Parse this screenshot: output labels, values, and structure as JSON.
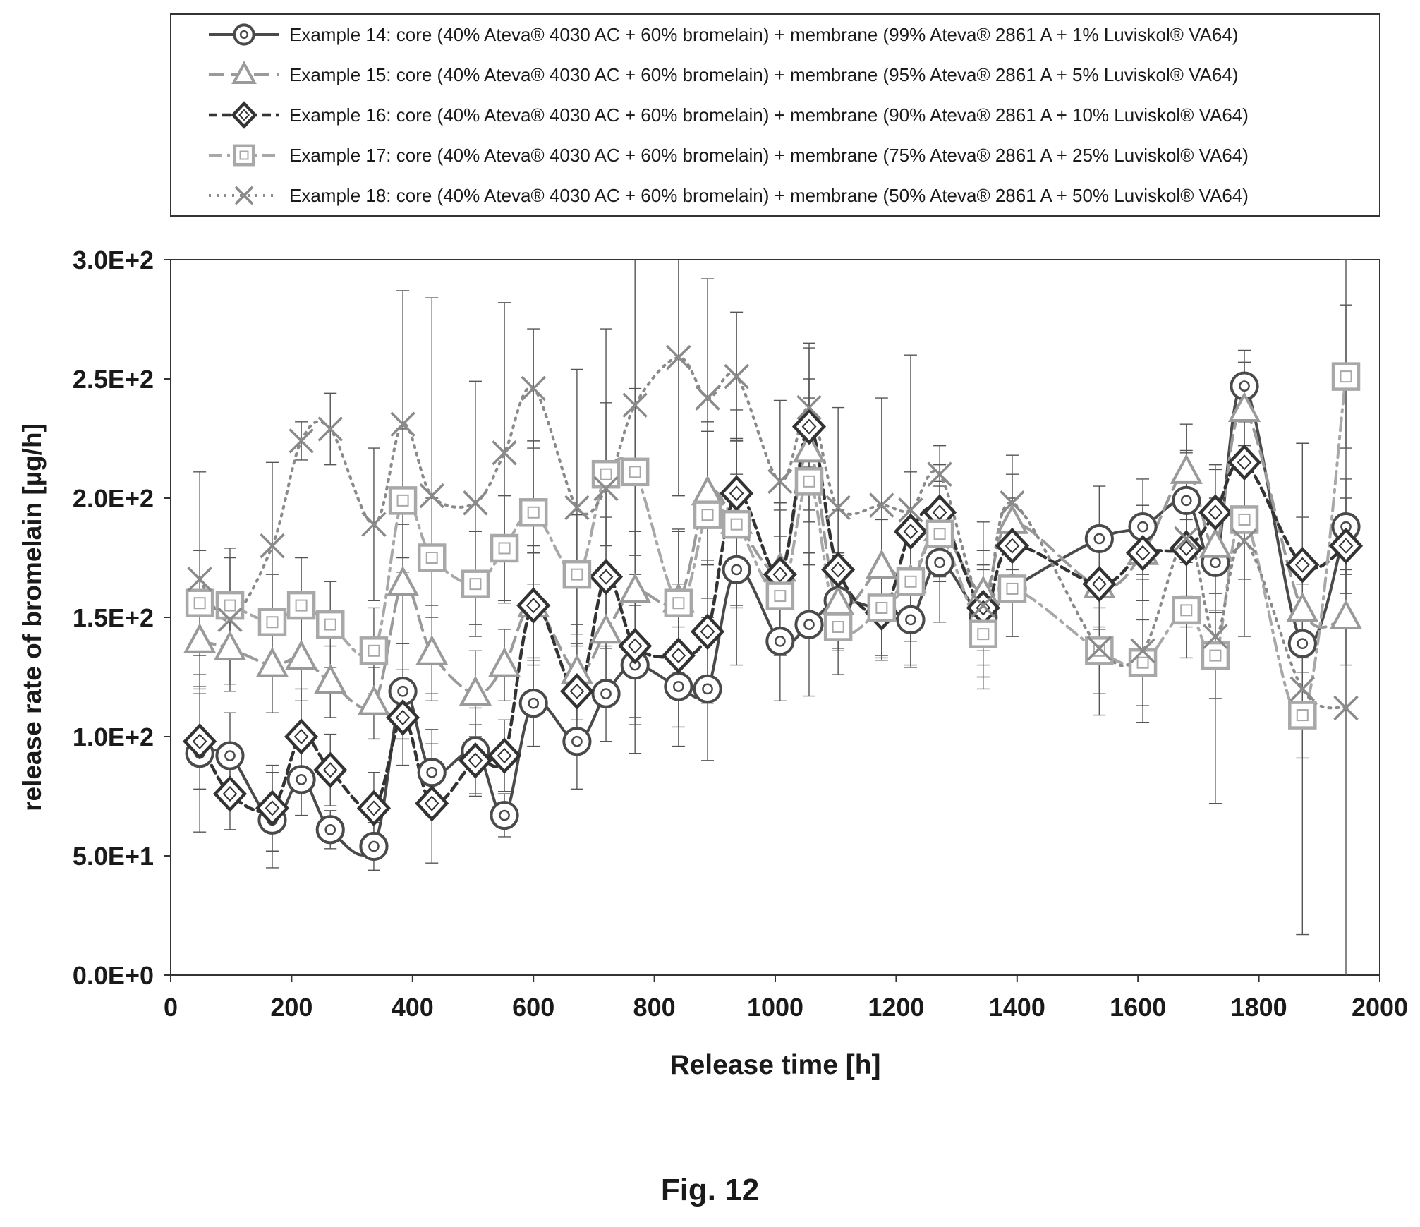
{
  "figure_caption": "Fig. 12",
  "chart_data": {
    "type": "line",
    "title": "",
    "xlabel": "Release time [h]",
    "ylabel": "release rate of bromelain [µg/h]",
    "xlim": [
      0,
      2000
    ],
    "ylim": [
      0,
      300
    ],
    "x_ticks": [
      "0",
      "200",
      "400",
      "600",
      "800",
      "1000",
      "1200",
      "1400",
      "1600",
      "1800",
      "2000"
    ],
    "y_ticks": [
      "0.0E+0",
      "5.0E+1",
      "1.0E+2",
      "1.5E+2",
      "2.0E+2",
      "2.5E+2",
      "3.0E+2"
    ],
    "grid": false,
    "legend_placement": "top",
    "x": [
      48,
      98,
      168,
      216,
      264,
      336,
      384,
      432,
      504,
      552,
      600,
      672,
      720,
      768,
      840,
      888,
      936,
      1008,
      1056,
      1104,
      1176,
      1224,
      1272,
      1344,
      1392,
      1536,
      1608,
      1680,
      1728,
      1776,
      1872,
      1944
    ],
    "series": [
      {
        "name": "Example 14: core (40% Ateva® 4030 AC + 60% bromelain) + membrane (99% Ateva® 2861 A + 1% Luviskol® VA64)",
        "marker": "circle",
        "dash": "solid",
        "color": "#4a4a4a",
        "values": [
          93,
          92,
          65,
          82,
          61,
          54,
          119,
          85,
          94,
          67,
          114,
          98,
          118,
          130,
          121,
          120,
          170,
          140,
          147,
          157,
          153,
          149,
          173,
          150,
          162,
          183,
          188,
          199,
          173,
          247,
          139,
          188
        ],
        "errors": [
          33,
          18,
          20,
          15,
          8,
          10,
          20,
          18,
          18,
          9,
          18,
          20,
          20,
          25,
          25,
          30,
          40,
          25,
          30,
          20,
          20,
          20,
          25,
          20,
          20,
          22,
          20,
          20,
          20,
          15,
          25,
          20
        ]
      },
      {
        "name": "Example 15: core (40% Ateva® 4030 AC + 60% bromelain) + membrane (95% Ateva® 2861 A + 5% Luviskol® VA64)",
        "marker": "triangle",
        "dash": "longdash",
        "color": "#9a9a9a",
        "values": [
          140,
          137,
          130,
          133,
          123,
          114,
          164,
          135,
          118,
          130,
          155,
          127,
          144,
          161,
          157,
          202,
          190,
          170,
          220,
          156,
          171,
          165,
          187,
          160,
          190,
          163,
          177,
          211,
          180,
          237,
          153,
          150
        ],
        "errors": [
          20,
          15,
          20,
          18,
          15,
          15,
          25,
          20,
          18,
          15,
          22,
          20,
          20,
          25,
          30,
          30,
          35,
          25,
          30,
          20,
          20,
          20,
          20,
          18,
          20,
          18,
          20,
          20,
          20,
          20,
          20,
          20
        ]
      },
      {
        "name": "Example 16: core (40% Ateva® 4030 AC + 60% bromelain) + membrane (90% Ateva® 2861 A + 10% Luviskol® VA64)",
        "marker": "diamond",
        "dash": "shortdash",
        "color": "#333333",
        "values": [
          98,
          76,
          70,
          100,
          86,
          70,
          108,
          72,
          90,
          92,
          155,
          119,
          167,
          138,
          134,
          144,
          202,
          168,
          230,
          170,
          152,
          186,
          194,
          154,
          180,
          164,
          177,
          179,
          194,
          215,
          172,
          180
        ],
        "errors": [
          20,
          15,
          18,
          20,
          15,
          15,
          20,
          25,
          15,
          15,
          25,
          20,
          25,
          30,
          30,
          30,
          35,
          30,
          35,
          25,
          20,
          25,
          20,
          18,
          20,
          18,
          20,
          20,
          20,
          20,
          20,
          20
        ]
      },
      {
        "name": "Example 17: core (40% Ateva® 4030 AC + 60% bromelain) + membrane (75% Ateva® 2861 A + 25% Luviskol® VA64)",
        "marker": "square",
        "dash": "dashdot",
        "color": "#a8a8a8",
        "values": [
          156,
          155,
          148,
          155,
          147,
          136,
          199,
          175,
          164,
          179,
          194,
          168,
          210,
          211,
          156,
          193,
          189,
          159,
          207,
          146,
          154,
          165,
          185,
          143,
          162,
          136,
          131,
          153,
          134,
          191,
          109,
          251
        ],
        "errors": [
          22,
          20,
          20,
          20,
          18,
          18,
          30,
          25,
          22,
          22,
          30,
          25,
          30,
          35,
          30,
          35,
          35,
          25,
          35,
          20,
          20,
          25,
          20,
          18,
          20,
          18,
          18,
          20,
          18,
          25,
          18,
          30
        ]
      },
      {
        "name": "Example 18: core (40% Ateva® 4030 AC + 60% bromelain) + membrane (50% Ateva® 2861 A + 50% Luviskol® VA64)",
        "marker": "cross",
        "dash": "dotted",
        "color": "#8a8a8a",
        "values": [
          166,
          149,
          180,
          224,
          229,
          189,
          231,
          201,
          198,
          219,
          246,
          196,
          204,
          239,
          259,
          242,
          251,
          207,
          238,
          196,
          197,
          195,
          210,
          155,
          198,
          137,
          136,
          183,
          142,
          182,
          120,
          112
        ],
        "errors": [
          45,
          30,
          35,
          8,
          15,
          32,
          56,
          83,
          51,
          63,
          25,
          58,
          67,
          146,
          58,
          50,
          27,
          34,
          25,
          42,
          45,
          65,
          12,
          35,
          20,
          28,
          30,
          37,
          70,
          40,
          103,
          188
        ]
      }
    ]
  }
}
